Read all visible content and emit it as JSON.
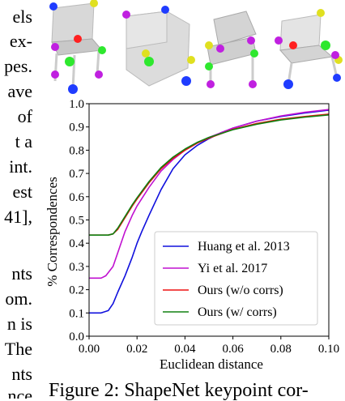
{
  "left_text": [
    "els",
    "ex-",
    "pes.",
    "ave",
    "of",
    "t a",
    "int.",
    "est",
    "41],",
    "nts",
    "om.",
    "n is",
    "The",
    "nts",
    "nce"
  ],
  "caption": "Figure 2: ShapeNet keypoint cor-",
  "colors": {
    "keypoint_blue": "#1f3cff",
    "keypoint_green": "#2ee82e",
    "keypoint_purple": "#c020e0",
    "keypoint_yellow": "#e0e020",
    "keypoint_red": "#ff2020",
    "chair_gray": "#d8d8d8"
  },
  "chart_data": {
    "type": "line",
    "xlabel": "Euclidean distance",
    "ylabel": "% Correspondences",
    "xlim": [
      0,
      0.1
    ],
    "ylim": [
      0,
      1.0
    ],
    "xticks": [
      "0.00",
      "0.02",
      "0.04",
      "0.06",
      "0.08",
      "0.10"
    ],
    "yticks": [
      "0.0",
      "0.1",
      "0.2",
      "0.3",
      "0.4",
      "0.5",
      "0.6",
      "0.7",
      "0.8",
      "0.9",
      "1.0"
    ],
    "legend_position": "lower-right",
    "grid": false,
    "series": [
      {
        "name": "Huang et al. 2013",
        "color": "#1010dd",
        "x": [
          0,
          0.005,
          0.008,
          0.01,
          0.012,
          0.015,
          0.018,
          0.02,
          0.022,
          0.025,
          0.03,
          0.035,
          0.04,
          0.045,
          0.05,
          0.055,
          0.06,
          0.07,
          0.08,
          0.09,
          0.1
        ],
        "y": [
          0.1,
          0.1,
          0.11,
          0.14,
          0.19,
          0.26,
          0.34,
          0.4,
          0.45,
          0.52,
          0.63,
          0.72,
          0.78,
          0.82,
          0.85,
          0.875,
          0.895,
          0.925,
          0.945,
          0.96,
          0.972
        ]
      },
      {
        "name": "Yi et al. 2017",
        "color": "#c010d0",
        "x": [
          0,
          0.005,
          0.007,
          0.01,
          0.012,
          0.015,
          0.018,
          0.02,
          0.025,
          0.03,
          0.035,
          0.04,
          0.045,
          0.05,
          0.06,
          0.07,
          0.08,
          0.09,
          0.1
        ],
        "y": [
          0.25,
          0.25,
          0.26,
          0.3,
          0.36,
          0.45,
          0.52,
          0.56,
          0.64,
          0.71,
          0.76,
          0.8,
          0.83,
          0.855,
          0.895,
          0.925,
          0.947,
          0.963,
          0.975
        ]
      },
      {
        "name": "Ours (w/o corrs)",
        "color": "#ee1010",
        "x": [
          0,
          0.008,
          0.01,
          0.012,
          0.015,
          0.018,
          0.02,
          0.025,
          0.03,
          0.035,
          0.04,
          0.045,
          0.05,
          0.06,
          0.07,
          0.08,
          0.09,
          0.1
        ],
        "y": [
          0.435,
          0.435,
          0.44,
          0.46,
          0.51,
          0.56,
          0.59,
          0.66,
          0.72,
          0.765,
          0.8,
          0.83,
          0.852,
          0.89,
          0.915,
          0.933,
          0.945,
          0.955
        ]
      },
      {
        "name": "Ours (w/ corrs)",
        "color": "#108010",
        "x": [
          0,
          0.008,
          0.01,
          0.012,
          0.015,
          0.018,
          0.02,
          0.025,
          0.03,
          0.035,
          0.04,
          0.045,
          0.05,
          0.06,
          0.07,
          0.08,
          0.09,
          0.1
        ],
        "y": [
          0.435,
          0.435,
          0.44,
          0.465,
          0.515,
          0.565,
          0.595,
          0.665,
          0.725,
          0.77,
          0.805,
          0.833,
          0.855,
          0.888,
          0.912,
          0.93,
          0.942,
          0.952
        ]
      }
    ]
  }
}
